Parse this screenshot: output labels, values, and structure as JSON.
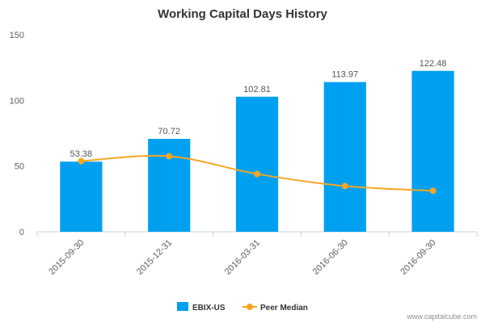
{
  "chart_data": {
    "type": "bar",
    "title": "Working Capital Days History",
    "categories": [
      "2015-09-30",
      "2015-12-31",
      "2016-03-31",
      "2016-06-30",
      "2016-09-30"
    ],
    "series": [
      {
        "name": "EBIX-US",
        "type": "bar",
        "color": "#00a0f0",
        "values": [
          53.38,
          70.72,
          102.81,
          113.97,
          122.48
        ],
        "data_labels": [
          "53.38",
          "70.72",
          "102.81",
          "113.97",
          "122.48"
        ]
      },
      {
        "name": "Peer Median",
        "type": "line",
        "color": "#f5a623",
        "values": [
          53.8,
          57.5,
          44.0,
          34.8,
          31.2
        ]
      }
    ],
    "ylim": [
      0,
      150
    ],
    "yticks": [
      0,
      50,
      100,
      150
    ],
    "grid": false,
    "legend": "bottom-center"
  },
  "credit": "www.capitalcube.com"
}
